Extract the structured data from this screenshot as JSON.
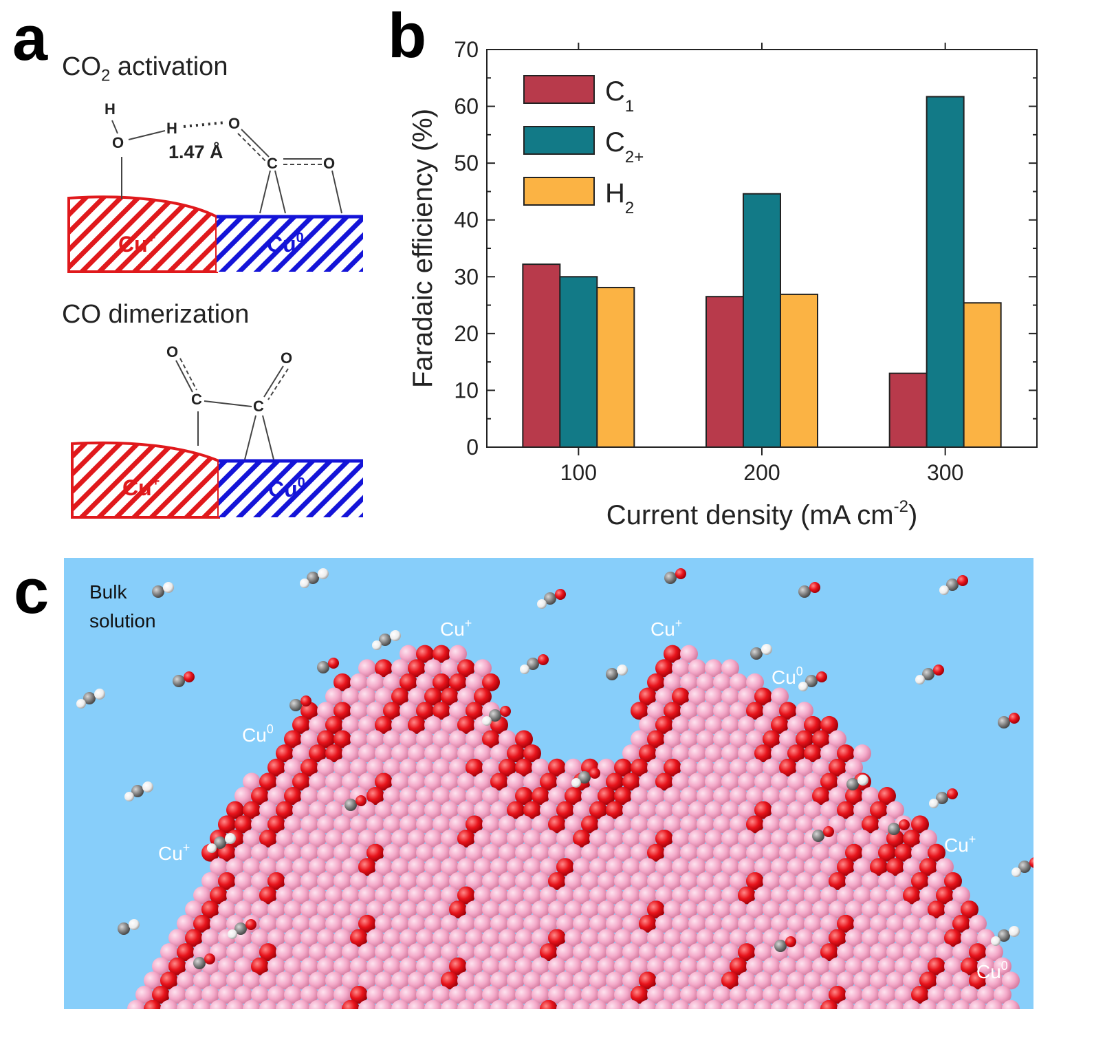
{
  "panel_a": {
    "letter": "a",
    "activation_title": "CO",
    "activation_title_sub": "2",
    "activation_title_rest": " activation",
    "dimerization_title": "CO dimerization",
    "bond_length": "1.47 Å",
    "atoms": {
      "h": "H",
      "o": "O",
      "c": "C"
    },
    "cu_plus": "Cu",
    "cu_plus_sup": "+",
    "cu_zero": "Cu",
    "cu_zero_sup": "0",
    "colors": {
      "cu_plus": "#e0191c",
      "cu_zero": "#1414d8"
    }
  },
  "panel_b": {
    "letter": "b"
  },
  "chart_data": {
    "type": "bar",
    "categories": [
      "100",
      "200",
      "300"
    ],
    "xlabel": "Current density (mA cm",
    "xlabel_sup": "-2",
    "xlabel_end": ")",
    "ylabel": "Faradaic efficiency (%)",
    "ylim": [
      0,
      70
    ],
    "yticks": [
      "0",
      "10",
      "20",
      "30",
      "40",
      "50",
      "60",
      "70"
    ],
    "legend_position": "top-left",
    "series": [
      {
        "name": "C",
        "sub": "1",
        "color": "#b83a4b",
        "values": [
          32.2,
          26.5,
          13.0
        ]
      },
      {
        "name": "C",
        "sub": "2+",
        "color": "#127a87",
        "values": [
          30.0,
          44.6,
          61.7
        ]
      },
      {
        "name": "H",
        "sub": "2",
        "color": "#fbb344",
        "values": [
          28.1,
          26.9,
          25.4
        ]
      }
    ]
  },
  "panel_c": {
    "letter": "c",
    "bulk_label_1": "Bulk",
    "bulk_label_2": "solution",
    "cu_plus_labels": [
      "Cu",
      "Cu",
      "Cu",
      "Cu"
    ],
    "cu_zero_labels": [
      "Cu",
      "Cu",
      "Cu"
    ],
    "plus_sup": "+",
    "zero_sup": "0",
    "colors": {
      "background": "#87cefa",
      "cu_metal": "#f5a6c8",
      "oxygen": "#e8141c",
      "carbon": "#808080",
      "hydrogen": "#f4f4f4"
    }
  }
}
